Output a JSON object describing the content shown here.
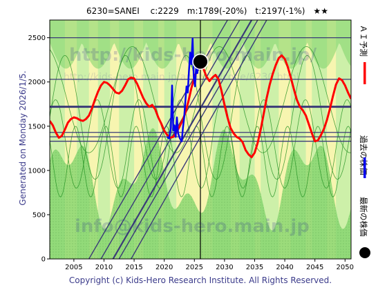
{
  "header": {
    "title": "6230=SANEI　 c:2229　m:1789(-20%)　t:2197(-1%)　★★"
  },
  "side_label": "Generated on Monday 2026/1/5.",
  "footer": "Copyright (c) Kids-Hero Research Institute. All Rights Reserved.",
  "watermarks": [
    "http://kids-hero.main.jp/",
    "http://kids-hero.main.jp/analysis/code/6230.html",
    "info@kids-hero.main.jp"
  ],
  "legend": {
    "ai_forecast": "ＡＩ予測",
    "past_price": "過去の株価",
    "latest_price": "最新の株価"
  },
  "colors": {
    "forecast": "#ff0000",
    "past": "#0000ee",
    "latest": "#000000",
    "band_green": "#7ed36a",
    "band_yellow": "#f7f5b0",
    "band_lightgreen": "#c8efa8",
    "hline": "#3a3a78",
    "trend": "#3a3a78",
    "wave": "#1f8f1f"
  },
  "chart_data": {
    "type": "line",
    "title": "6230=SANEI c:2229 m:1789(-20%) t:2197(-1%) ★★",
    "xlim": [
      2001,
      2051
    ],
    "ylim": [
      0,
      2700
    ],
    "x_ticks": [
      2005,
      2010,
      2015,
      2020,
      2025,
      2030,
      2035,
      2040,
      2045,
      2050
    ],
    "y_ticks": [
      0,
      500,
      1000,
      1500,
      2000,
      2500
    ],
    "grid": false,
    "legend_position": "right",
    "horizontal_levels": [
      2500,
      2030,
      1720,
      1430,
      1380,
      1330
    ],
    "current_marker": {
      "x": 2026.0,
      "y": 2229
    },
    "current_vline_x": 2026.0,
    "series": [
      {
        "name": "ＡＩ予測",
        "x": [
          2001.0,
          2001.5,
          2002.0,
          2002.5,
          2003.0,
          2003.5,
          2004.0,
          2004.5,
          2005.0,
          2005.5,
          2006.0,
          2006.5,
          2007.0,
          2007.5,
          2008.0,
          2008.5,
          2009.0,
          2009.5,
          2010.0,
          2010.5,
          2011.0,
          2011.5,
          2012.0,
          2012.5,
          2013.0,
          2013.5,
          2014.0,
          2014.5,
          2015.0,
          2015.5,
          2016.0,
          2016.5,
          2017.0,
          2017.5,
          2018.0,
          2018.5,
          2019.0,
          2019.5,
          2020.0,
          2020.5,
          2021.0,
          2021.5,
          2022.0,
          2022.5,
          2023.0,
          2023.5,
          2024.0,
          2024.5,
          2025.0,
          2025.5,
          2026.0,
          2026.5,
          2027.0,
          2027.5,
          2028.0,
          2028.5,
          2029.0,
          2029.5,
          2030.0,
          2030.5,
          2031.0,
          2031.5,
          2032.0,
          2032.5,
          2033.0,
          2033.5,
          2034.0,
          2034.5,
          2035.0,
          2035.5,
          2036.0,
          2036.5,
          2037.0,
          2037.5,
          2038.0,
          2038.5,
          2039.0,
          2039.5,
          2040.0,
          2040.5,
          2041.0,
          2041.5,
          2042.0,
          2042.5,
          2043.0,
          2043.5,
          2044.0,
          2044.5,
          2045.0,
          2045.5,
          2046.0,
          2046.5,
          2047.0,
          2047.5,
          2048.0,
          2048.5,
          2049.0,
          2049.5,
          2050.0,
          2050.5,
          2051.0
        ],
        "y": [
          1560,
          1510,
          1430,
          1370,
          1390,
          1460,
          1540,
          1580,
          1600,
          1590,
          1570,
          1560,
          1580,
          1620,
          1700,
          1800,
          1890,
          1960,
          2000,
          1990,
          1960,
          1920,
          1880,
          1870,
          1900,
          1960,
          2030,
          2050,
          2040,
          1980,
          1900,
          1820,
          1760,
          1720,
          1740,
          1690,
          1600,
          1530,
          1450,
          1400,
          1370,
          1380,
          1430,
          1490,
          1560,
          1650,
          1780,
          1930,
          2050,
          2140,
          2200,
          2150,
          2060,
          2010,
          2050,
          2080,
          2030,
          1900,
          1740,
          1600,
          1480,
          1420,
          1380,
          1360,
          1320,
          1230,
          1180,
          1150,
          1200,
          1310,
          1460,
          1640,
          1820,
          1970,
          2090,
          2190,
          2270,
          2300,
          2260,
          2170,
          2050,
          1920,
          1800,
          1720,
          1680,
          1620,
          1520,
          1420,
          1330,
          1340,
          1400,
          1470,
          1570,
          1700,
          1840,
          1970,
          2040,
          2020,
          1960,
          1880,
          1810
        ]
      },
      {
        "name": "過去の株価",
        "x": [
          2020.5,
          2020.8,
          2021.1,
          2021.3,
          2021.5,
          2021.7,
          2021.9,
          2022.1,
          2022.3,
          2022.6,
          2022.9,
          2023.1,
          2023.3,
          2023.5,
          2023.7,
          2023.9,
          2024.1,
          2024.3,
          2024.5,
          2024.7,
          2024.9,
          2025.1,
          2025.3,
          2025.5,
          2025.7,
          2025.9,
          2026.0
        ],
        "y": [
          1380,
          1360,
          1480,
          1960,
          1450,
          1510,
          1380,
          1600,
          1420,
          1360,
          1330,
          1480,
          1600,
          1780,
          1950,
          1880,
          2120,
          2330,
          2200,
          2490,
          2050,
          1950,
          2180,
          2100,
          2260,
          2210,
          2229
        ]
      }
    ]
  }
}
